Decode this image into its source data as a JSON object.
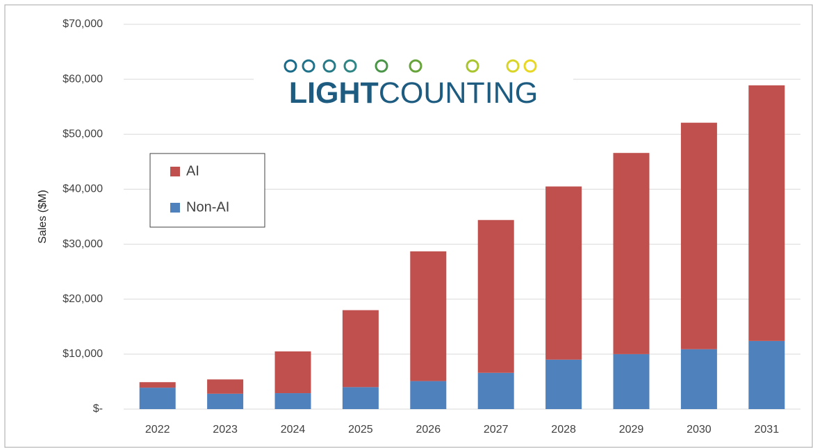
{
  "chart_data": {
    "type": "stacked_bar",
    "y_label": "Sales ($M)",
    "logo": {
      "bold": "LIGHT",
      "regular": "COUNTING"
    },
    "categories": [
      "2022",
      "2023",
      "2024",
      "2025",
      "2026",
      "2027",
      "2028",
      "2029",
      "2030",
      "2031"
    ],
    "series": [
      {
        "name": "Non-AI",
        "color": "#4f81bd",
        "values": [
          3900,
          2800,
          2900,
          4000,
          5100,
          6600,
          9000,
          10000,
          10900,
          12400
        ]
      },
      {
        "name": "AI",
        "color": "#c0504d",
        "values": [
          1000,
          2600,
          7600,
          14000,
          23600,
          27800,
          31500,
          36600,
          41200,
          46500
        ]
      }
    ],
    "ylim": [
      0,
      70000
    ],
    "yticks": [
      {
        "value": 0,
        "label": "$-"
      },
      {
        "value": 10000,
        "label": "$10,000"
      },
      {
        "value": 20000,
        "label": "$20,000"
      },
      {
        "value": 30000,
        "label": "$30,000"
      },
      {
        "value": 40000,
        "label": "$40,000"
      },
      {
        "value": 50000,
        "label": "$50,000"
      },
      {
        "value": 60000,
        "label": "$60,000"
      },
      {
        "value": 70000,
        "label": "$70,000"
      }
    ],
    "grid": true,
    "legend": "left"
  }
}
